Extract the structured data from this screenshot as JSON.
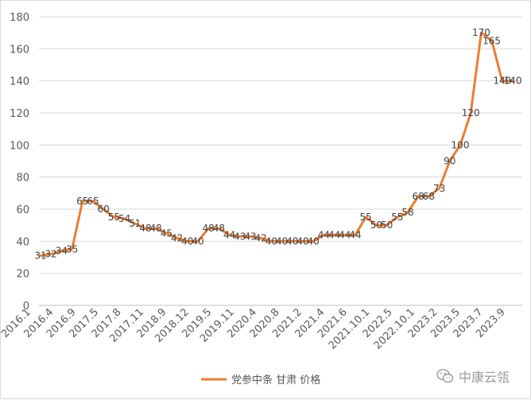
{
  "chart_data": {
    "type": "line",
    "title": "",
    "xlabel": "",
    "ylabel": "",
    "ylim": [
      0,
      180
    ],
    "yticks": [
      0,
      20,
      40,
      60,
      80,
      100,
      120,
      140,
      160,
      180
    ],
    "grid": "horizontal",
    "legend_position": "bottom",
    "x_tick_labels": [
      "2016.1",
      "2016.4",
      "2016.9",
      "2017.5",
      "2017.8",
      "2017.11",
      "2018.9",
      "2018.12",
      "2019.5",
      "2019.11",
      "2020.4",
      "2020.8",
      "2021.2",
      "2021.4",
      "2021.6",
      "2021.10.1",
      "2022.5",
      "2022.10.1",
      "2023.2",
      "2023.5",
      "2023.7",
      "2023.9"
    ],
    "series": [
      {
        "name": "党参中条 甘肃 价格",
        "color": "#ED7D31",
        "values": [
          31,
          32,
          34,
          35,
          65,
          65,
          60,
          55,
          54,
          51,
          48,
          48,
          45,
          42,
          40,
          40,
          48,
          48,
          44,
          43,
          43,
          42,
          40,
          40,
          40,
          40,
          40,
          44,
          44,
          44,
          44,
          55,
          50,
          50,
          55,
          58,
          68,
          68,
          73,
          90,
          100,
          120,
          170,
          165,
          140,
          140
        ]
      }
    ]
  },
  "watermark": {
    "text": "中康云瓴",
    "icon": "wechat-icon"
  }
}
